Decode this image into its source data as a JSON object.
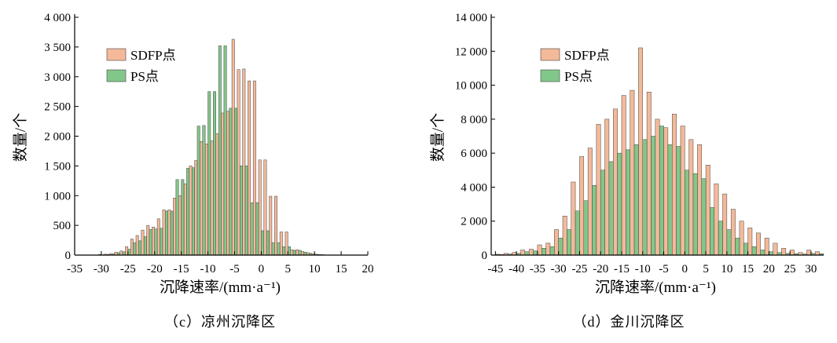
{
  "colors": {
    "sdfp": "#f4b999",
    "ps": "#82c78a",
    "edge": "#444444",
    "axis": "#000000"
  },
  "chart_data": [
    {
      "type": "bar",
      "caption": "（c）凉州沉降区",
      "xlabel": "沉降速率/(mm·a⁻¹)",
      "ylabel": "数量/个",
      "xlim": [
        -35,
        20
      ],
      "ylim": [
        0,
        4000
      ],
      "xticks": [
        -35,
        -30,
        -25,
        -20,
        -15,
        -10,
        -5,
        0,
        5,
        10,
        15,
        20
      ],
      "xtick_labels": [
        "-35",
        "-30",
        "-25",
        "-20",
        "-15",
        "-10",
        "-5",
        "0",
        "5",
        "10",
        "15",
        "20"
      ],
      "yticks": [
        0,
        500,
        1000,
        1500,
        2000,
        2500,
        3000,
        3500,
        4000
      ],
      "ytick_labels": [
        "0",
        "500",
        "1 000",
        "1 500",
        "2 000",
        "2 500",
        "3 000",
        "3 500",
        "4 000"
      ],
      "legend_position": "top-left",
      "bin_width": 1,
      "x": [
        -30,
        -29,
        -28,
        -27,
        -26,
        -25,
        -24,
        -23,
        -22,
        -21,
        -20,
        -19,
        -18,
        -17,
        -16,
        -15,
        -14,
        -13,
        -12,
        -11,
        -10,
        -9,
        -8,
        -7,
        -6,
        -5,
        -4,
        -3,
        -2,
        -1,
        0,
        1,
        2,
        3,
        4,
        5,
        6,
        7,
        8,
        9,
        10,
        11,
        12,
        13
      ],
      "series": [
        {
          "name": "SDFP点",
          "color_key": "sdfp",
          "values": [
            10,
            15,
            25,
            50,
            70,
            140,
            270,
            330,
            420,
            500,
            470,
            610,
            760,
            760,
            960,
            1000,
            1200,
            1500,
            1590,
            1910,
            1870,
            1920,
            2040,
            2390,
            2420,
            3630,
            3120,
            3130,
            2930,
            2930,
            1600,
            1600,
            990,
            990,
            390,
            390,
            90,
            90,
            60,
            40,
            20,
            10,
            5,
            0
          ]
        },
        {
          "name": "PS点",
          "color_key": "ps",
          "values": [
            5,
            10,
            20,
            40,
            55,
            100,
            210,
            240,
            310,
            430,
            440,
            450,
            740,
            740,
            1270,
            1270,
            1460,
            1470,
            2170,
            2180,
            2750,
            2750,
            3520,
            3520,
            2470,
            2470,
            1500,
            1500,
            880,
            880,
            410,
            410,
            210,
            210,
            140,
            140,
            80,
            80,
            50,
            30,
            15,
            8,
            3,
            0
          ]
        }
      ]
    },
    {
      "type": "bar",
      "caption": "（d）金川沉降区",
      "xlabel": "沉降速率/(mm·a⁻¹)",
      "ylabel": "数量/个",
      "xlim": [
        -46,
        33
      ],
      "ylim": [
        0,
        14000
      ],
      "xticks": [
        -45,
        -40,
        -35,
        -30,
        -25,
        -20,
        -15,
        -10,
        -5,
        0,
        5,
        10,
        15,
        20,
        25,
        30
      ],
      "xtick_labels": [
        "-45",
        "-40",
        "-35",
        "-30",
        "-25",
        "-20",
        "-15",
        "-10",
        "-5",
        "0",
        "5",
        "10",
        "15",
        "20",
        "25",
        "30"
      ],
      "yticks": [
        0,
        2000,
        4000,
        6000,
        8000,
        10000,
        12000,
        14000
      ],
      "ytick_labels": [
        "0",
        "2 000",
        "4 000",
        "6 000",
        "8 000",
        "10 000",
        "12 000",
        "14 000"
      ],
      "legend_position": "top-left",
      "bin_width": 2,
      "x": [
        -44,
        -42,
        -40,
        -38,
        -36,
        -34,
        -32,
        -30,
        -28,
        -26,
        -24,
        -22,
        -20,
        -18,
        -16,
        -14,
        -12,
        -10,
        -8,
        -6,
        -4,
        -2,
        0,
        2,
        4,
        6,
        8,
        10,
        12,
        14,
        16,
        18,
        20,
        22,
        24,
        26,
        28,
        30,
        32
      ],
      "series": [
        {
          "name": "SDFP点",
          "color_key": "sdfp",
          "values": [
            50,
            100,
            150,
            300,
            350,
            600,
            700,
            1500,
            2300,
            4300,
            5800,
            6300,
            7700,
            8000,
            8600,
            9400,
            9700,
            12200,
            9600,
            8000,
            7500,
            8300,
            7600,
            6800,
            6500,
            5300,
            4200,
            3600,
            2700,
            2000,
            1600,
            1300,
            1000,
            700,
            400,
            300,
            150,
            300,
            200
          ]
        },
        {
          "name": "PS点",
          "color_key": "ps",
          "values": [
            30,
            60,
            100,
            200,
            250,
            400,
            500,
            1000,
            1500,
            2600,
            3200,
            4100,
            5000,
            5500,
            6000,
            6200,
            6500,
            6800,
            7000,
            7600,
            6500,
            6400,
            5000,
            4800,
            4500,
            2800,
            2000,
            1500,
            1000,
            700,
            500,
            300,
            200,
            150,
            100,
            80,
            60,
            100,
            80
          ]
        }
      ]
    }
  ]
}
